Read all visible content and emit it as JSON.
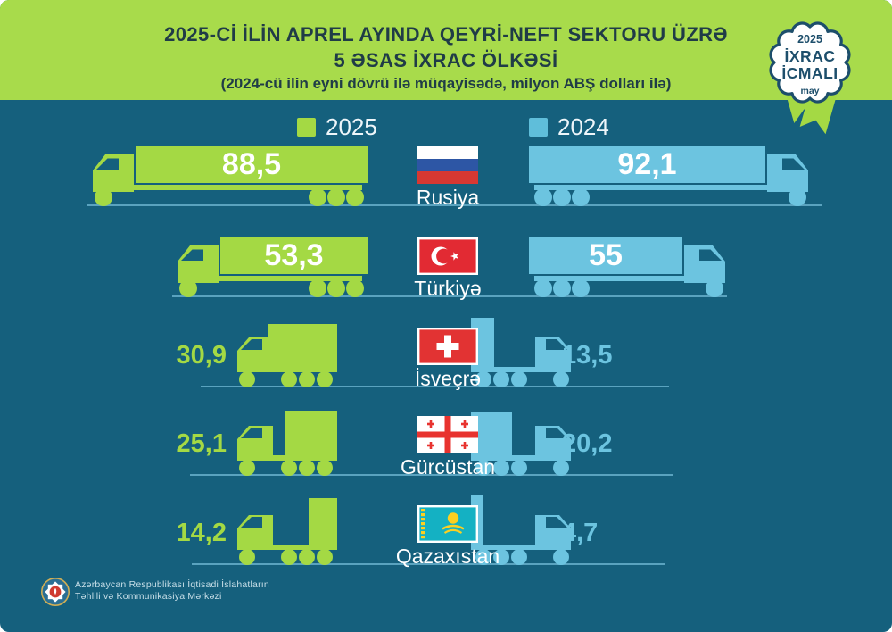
{
  "header": {
    "title_line1": "2025-Cİ İLİN APREL AYINDA QEYRİ-NEFT SEKTORU ÜZRƏ",
    "title_line2": "5 ƏSAS İXRAC ÖLKƏSİ",
    "title_line3": "(2024-cü ilin eyni dövrü ilə müqayisədə, milyon ABŞ dolları ilə)"
  },
  "badge": {
    "year": "2025",
    "title_line1": "İXRAC",
    "title_line2": "İCMALI",
    "month": "may"
  },
  "legend": {
    "label_2025": "2025",
    "label_2024": "2024"
  },
  "rows": [
    {
      "country": "Rusiya",
      "flag": "russia",
      "v2025": "88,5",
      "v2024": "92,1"
    },
    {
      "country": "Türkiyə",
      "flag": "turkey",
      "v2025": "53,3",
      "v2024": "55"
    },
    {
      "country": "İsveçrə",
      "flag": "switzerland",
      "v2025": "30,9",
      "v2024": "13,5"
    },
    {
      "country": "Gürcüstan",
      "flag": "georgia",
      "v2025": "25,1",
      "v2024": "20,2"
    },
    {
      "country": "Qazaxıstan",
      "flag": "kazakhstan",
      "v2025": "14,2",
      "v2024": "4,7"
    }
  ],
  "chart_data": {
    "type": "bar",
    "title": "2025-ci ilin aprel ayında qeyri-neft sektoru üzrə 5 əsas ixrac ölkəsi",
    "subtitle": "(2024-cü ilin eyni dövrü ilə müqayisədə, milyon ABŞ dolları ilə)",
    "unit": "milyon ABŞ dolları",
    "categories": [
      "Rusiya",
      "Türkiyə",
      "İsveçrə",
      "Gürcüstan",
      "Qazaxıstan"
    ],
    "series": [
      {
        "name": "2025",
        "color": "#a4d944",
        "values": [
          88.5,
          53.3,
          30.9,
          25.1,
          14.2
        ]
      },
      {
        "name": "2024",
        "color": "#6cc4e0",
        "values": [
          92.1,
          55,
          13.5,
          20.2,
          4.7
        ]
      }
    ],
    "legend_position": "top"
  },
  "footer": {
    "org_line1": "Azərbaycan Respublikası İqtisadi İslahatların",
    "org_line2": "Təhlili və Kommunikasiya Mərkəzi"
  },
  "colors": {
    "background": "#15607d",
    "header_green": "#a8db4b",
    "accent_green": "#a4d944",
    "accent_blue": "#6cc4e0",
    "legend_blue": "#5fbeda",
    "ground_line": "#5aa3bf",
    "badge_navy": "#1d4e6b",
    "title_text": "#203c47"
  }
}
